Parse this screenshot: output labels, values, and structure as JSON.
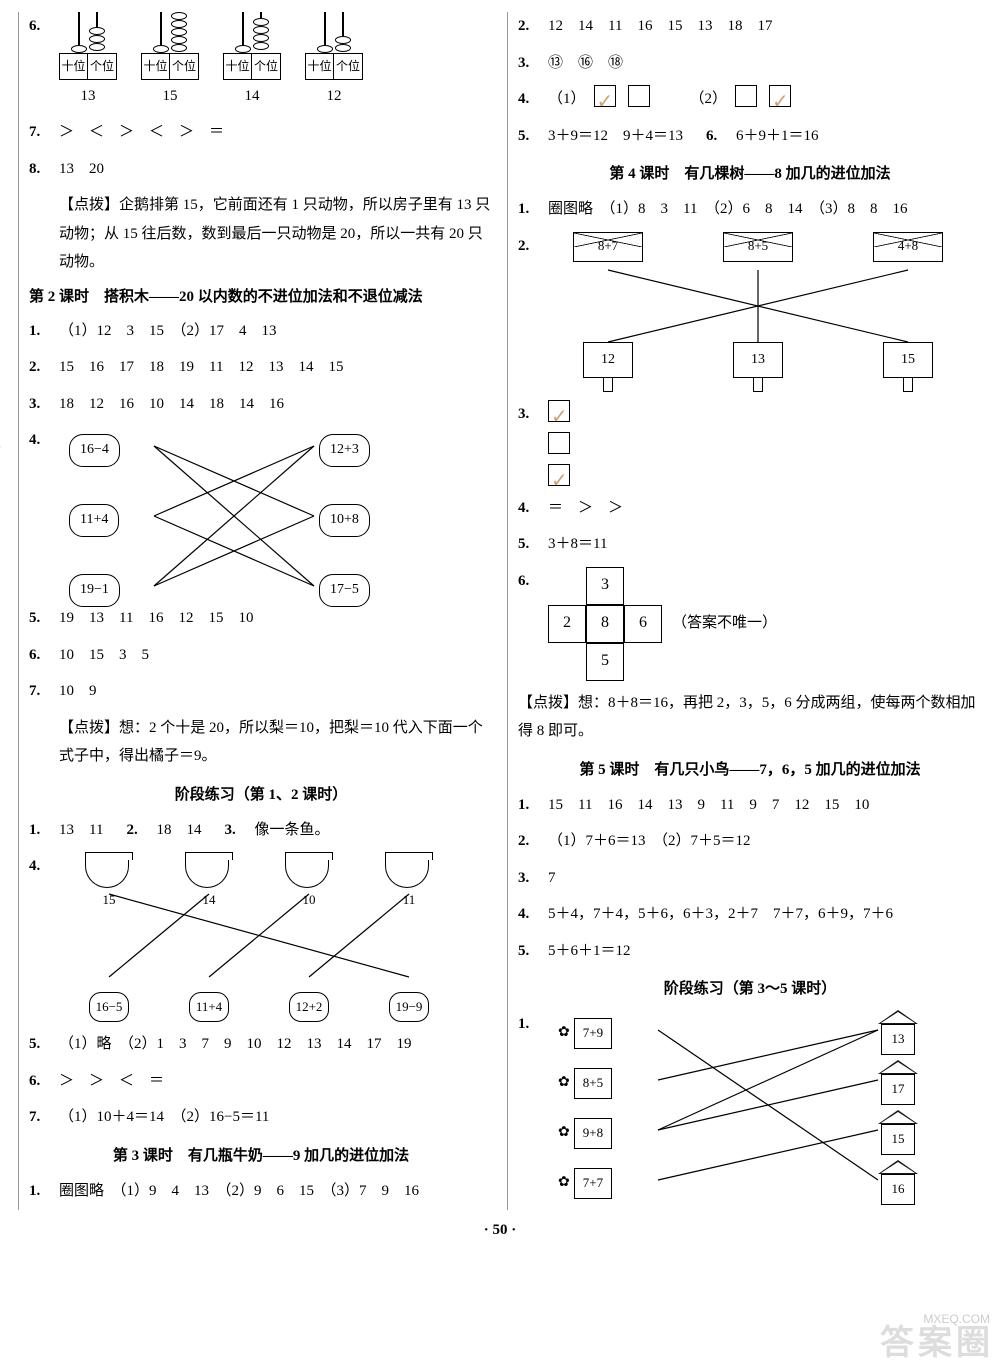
{
  "pageNumber": "· 50 ·",
  "watermark": "答案圈",
  "watermark2": "MXEQ.COM",
  "left": {
    "q6": {
      "num": "6.",
      "abaci": [
        {
          "tens": 1,
          "ones": 3,
          "label": "13"
        },
        {
          "tens": 1,
          "ones": 5,
          "label": "15"
        },
        {
          "tens": 1,
          "ones": 4,
          "label": "14"
        },
        {
          "tens": 1,
          "ones": 2,
          "label": "12"
        }
      ],
      "tenLabel": "十位",
      "oneLabel": "个位"
    },
    "q7": {
      "num": "7.",
      "text": "＞　＜　＞　＜　＞　＝"
    },
    "q8": {
      "num": "8.",
      "text": "13　20",
      "hint": "【点拨】企鹅排第 15，它前面还有 1 只动物，所以房子里有 13 只动物；从 15 往后数，数到最后一只动物是 20，所以一共有 20 只动物。"
    },
    "sec2": "第 2 课时　搭积木——20 以内数的不进位加法和不退位减法",
    "s2q1": {
      "num": "1.",
      "text": "（1）12　3　15　（2）17　4　13"
    },
    "s2q2": {
      "num": "2.",
      "text": "15　16　17　18　19　11　12　13　14　15"
    },
    "s2q3": {
      "num": "3.",
      "text": "18　12　16　10　14　18　14　16"
    },
    "s2q4": {
      "num": "4.",
      "left": [
        "16−4",
        "11+4",
        "19−1"
      ],
      "right": [
        "12+3",
        "10+8",
        "17−5"
      ]
    },
    "s2q5": {
      "num": "5.",
      "text": "19　13　11　16　12　15　10"
    },
    "s2q6": {
      "num": "6.",
      "text": "10　15　3　5"
    },
    "s2q7": {
      "num": "7.",
      "text": "10　9",
      "hint": "【点拨】想：2 个十是 20，所以梨＝10，把梨＝10 代入下面一个式子中，得出橘子＝9。"
    },
    "stage1": "阶段练习（第 1、2 课时）",
    "p1": {
      "num": "1.",
      "text": "13　11　"
    },
    "p2": {
      "num": "2.",
      "text": "18　14　"
    },
    "p3": {
      "num": "3.",
      "text": "像一条鱼。"
    },
    "p4": {
      "num": "4.",
      "tops": [
        "15",
        "14",
        "10",
        "11"
      ],
      "bots": [
        "16−5",
        "11+4",
        "12+2",
        "19−9"
      ]
    },
    "p5": {
      "num": "5.",
      "text": "（1）略　（2）1　3　7　9　10　12　13　14　17　19"
    },
    "p6": {
      "num": "6.",
      "text": "＞　＞　＜　＝"
    },
    "p7": {
      "num": "7.",
      "text": "（1）10＋4＝14　（2）16−5＝11"
    },
    "sec3": "第 3 课时　有几瓶牛奶——9 加几的进位加法",
    "s3q1": {
      "num": "1.",
      "text": "圈图略　（1）9　4　13　（2）9　6　15　（3）7　9　16"
    }
  },
  "right": {
    "q2": {
      "num": "2.",
      "text": "12　14　11　16　15　13　18　17"
    },
    "q3": {
      "num": "3.",
      "text": "⑬　⑯　⑱"
    },
    "q4": {
      "num": "4.",
      "a": "（1）",
      "b": "（2）"
    },
    "q5": {
      "num": "5.",
      "text": "3＋9＝12　9＋4＝13　"
    },
    "q6": {
      "num": "6.",
      "text": "6＋9＋1＝16"
    },
    "sec4": "第 4 课时　有几棵树——8 加几的进位加法",
    "s4q1": {
      "num": "1.",
      "text": "圈图略　（1）8　3　11　（2）6　8　14　（3）8　8　16"
    },
    "s4q2": {
      "num": "2.",
      "tops": [
        "8+7",
        "8+5",
        "4+8"
      ],
      "bots": [
        "12",
        "13",
        "15"
      ]
    },
    "s4q3": {
      "num": "3."
    },
    "s4q4": {
      "num": "4.",
      "text": "＝　＞　＞"
    },
    "s4q5": {
      "num": "5.",
      "text": "3＋8＝11"
    },
    "s4q6": {
      "num": "6.",
      "cells": {
        "t": "3",
        "l": "2",
        "c": "8",
        "r": "6",
        "b": "5"
      },
      "note": "（答案不唯一）",
      "hint": "【点拨】想：8＋8＝16，再把 2，3，5，6 分成两组，使每两个数相加得 8 即可。"
    },
    "sec5": "第 5 课时　有几只小鸟——7，6，5 加几的进位加法",
    "s5q1": {
      "num": "1.",
      "text": "15　11　16　14　13　9　11　9　7　12　15　10"
    },
    "s5q2": {
      "num": "2.",
      "text": "（1）7＋6＝13　（2）7＋5＝12"
    },
    "s5q3": {
      "num": "3.",
      "text": "7"
    },
    "s5q4": {
      "num": "4.",
      "text": "5＋4，7＋4，5＋6，6＋3，2＋7　7＋7，6＋9，7＋6"
    },
    "s5q5": {
      "num": "5.",
      "text": "5＋6＋1＝12"
    },
    "stage2": "阶段练习（第 3～5 课时）",
    "pr1": {
      "num": "1.",
      "left": [
        "7+9",
        "8+5",
        "9+8",
        "7+7"
      ],
      "right": [
        "13",
        "17",
        "15",
        "16"
      ]
    }
  }
}
